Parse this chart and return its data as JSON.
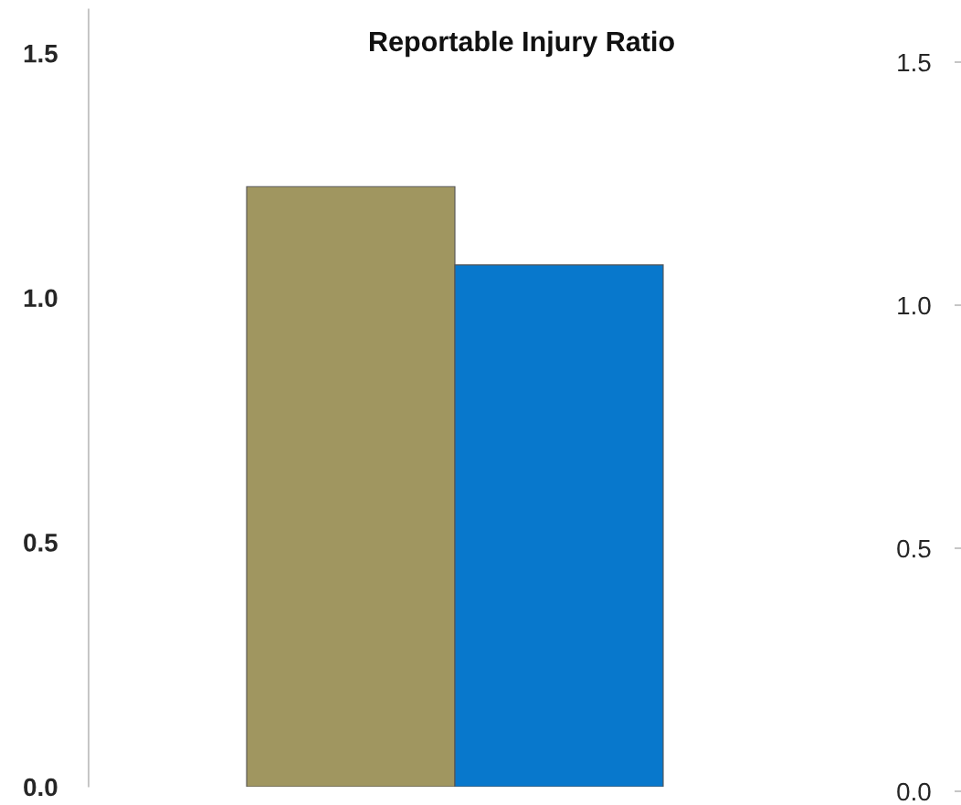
{
  "chart_data": {
    "type": "bar",
    "title": "Reportable Injury Ratio",
    "categories": [
      null
    ],
    "series": [
      {
        "color": "#a09660",
        "values": [
          1.227
        ]
      },
      {
        "color": "#0878cc",
        "values": [
          1.067
        ]
      }
    ],
    "ylim": [
      0,
      1.59
    ],
    "yticks": [
      {
        "value": 0,
        "label": "0.0"
      },
      {
        "value": 0.5,
        "label": "0.5"
      },
      {
        "value": 1,
        "label": "1.0"
      },
      {
        "value": 1.5,
        "label": "1.5"
      }
    ],
    "y2lim": [
      0,
      1.5
    ],
    "y2ticks": [
      {
        "value": 0,
        "label": "0.0"
      },
      {
        "value": 0.5,
        "label": "0.5"
      },
      {
        "value": 1,
        "label": "1.0"
      },
      {
        "value": 1.5,
        "label": "1.5"
      }
    ],
    "grid": false,
    "legend": false
  }
}
